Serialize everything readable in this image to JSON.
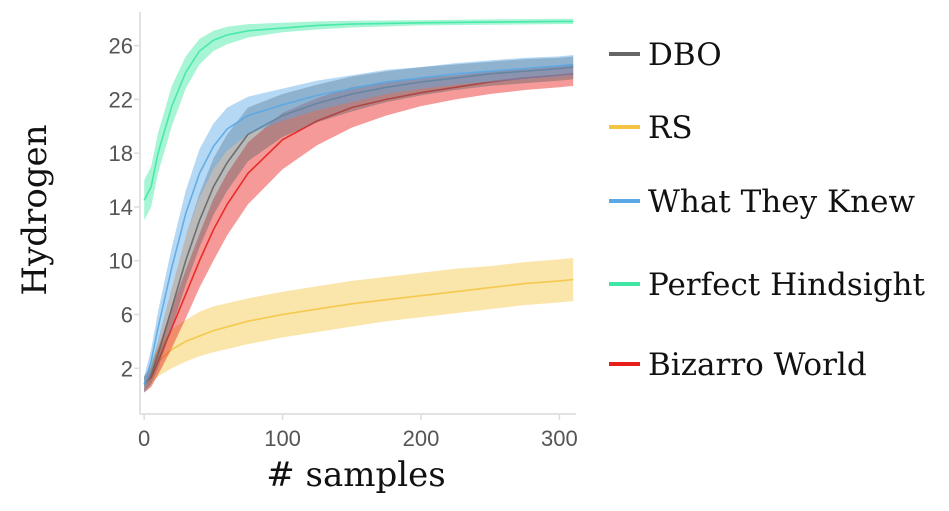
{
  "chart_data": {
    "type": "line",
    "title": "",
    "xlabel": "# samples",
    "ylabel": "Hydrogen",
    "xlim": [
      -3,
      312
    ],
    "ylim": [
      -1.4,
      28.5
    ],
    "xticks": [
      0,
      100,
      200,
      300
    ],
    "yticks": [
      2,
      6,
      10,
      14,
      18,
      22,
      26
    ],
    "grid": false,
    "legend_position": "right",
    "series": [
      {
        "name": "DBO",
        "color": "#666666",
        "x": [
          0,
          5,
          10,
          20,
          30,
          40,
          50,
          60,
          75,
          100,
          125,
          150,
          175,
          200,
          225,
          250,
          275,
          300,
          310
        ],
        "y": [
          0.8,
          1.5,
          3,
          6.5,
          10,
          13,
          15.5,
          17.3,
          19.4,
          20.8,
          21.7,
          22.4,
          22.9,
          23.3,
          23.6,
          23.9,
          24.1,
          24.3,
          24.4
        ],
        "lower": [
          0.2,
          0.8,
          2,
          5,
          8.2,
          11,
          13.4,
          15.2,
          17.4,
          19.2,
          20.3,
          21.1,
          21.8,
          22.3,
          22.7,
          23,
          23.2,
          23.4,
          23.5
        ],
        "upper": [
          1.4,
          2.2,
          4,
          8,
          11.8,
          15,
          17.6,
          19.4,
          21.4,
          22.4,
          23.1,
          23.7,
          24.1,
          24.4,
          24.6,
          24.8,
          25,
          25.1,
          25.2
        ]
      },
      {
        "name": "RS",
        "color": "#f4c542",
        "x": [
          0,
          5,
          10,
          20,
          30,
          40,
          50,
          75,
          100,
          125,
          150,
          175,
          200,
          225,
          250,
          275,
          300,
          310
        ],
        "y": [
          0.8,
          1.7,
          2.5,
          3.4,
          4,
          4.4,
          4.8,
          5.5,
          6,
          6.4,
          6.8,
          7.1,
          7.4,
          7.7,
          8,
          8.3,
          8.5,
          8.6
        ],
        "lower": [
          0.3,
          0.9,
          1.4,
          2,
          2.5,
          2.9,
          3.2,
          3.8,
          4.3,
          4.7,
          5.1,
          5.5,
          5.8,
          6.1,
          6.4,
          6.7,
          6.9,
          7
        ],
        "upper": [
          1.3,
          2.5,
          3.5,
          4.9,
          5.6,
          6.2,
          6.6,
          7.2,
          7.7,
          8.1,
          8.5,
          8.8,
          9.1,
          9.4,
          9.6,
          9.9,
          10.1,
          10.2
        ]
      },
      {
        "name": "What They Knew",
        "color": "#5aa9e6",
        "x": [
          0,
          5,
          10,
          20,
          30,
          40,
          50,
          60,
          75,
          100,
          125,
          150,
          175,
          200,
          225,
          250,
          275,
          300,
          310
        ],
        "y": [
          0.8,
          2.5,
          5,
          9.5,
          13.5,
          16.5,
          18.5,
          19.8,
          20.8,
          21.6,
          22.3,
          22.8,
          23.3,
          23.6,
          23.9,
          24.1,
          24.3,
          24.5,
          24.6
        ],
        "lower": [
          0.2,
          1.6,
          3.8,
          8,
          11.8,
          14.7,
          16.8,
          18.2,
          19.4,
          20.4,
          21.2,
          21.8,
          22.4,
          22.8,
          23.1,
          23.3,
          23.5,
          23.7,
          23.8
        ],
        "upper": [
          1.4,
          3.4,
          6.2,
          11,
          15.2,
          18.3,
          20.2,
          21.4,
          22.2,
          22.8,
          23.4,
          23.8,
          24.2,
          24.4,
          24.7,
          24.9,
          25.1,
          25.2,
          25.3
        ]
      },
      {
        "name": "Perfect Hindsight",
        "color": "#3ee8a4",
        "x": [
          0,
          5,
          10,
          20,
          30,
          40,
          50,
          60,
          75,
          100,
          125,
          150,
          200,
          250,
          300,
          310
        ],
        "y": [
          14.5,
          15.5,
          18,
          21.5,
          24,
          25.6,
          26.4,
          26.8,
          27.1,
          27.3,
          27.5,
          27.6,
          27.7,
          27.75,
          27.8,
          27.8
        ],
        "lower": [
          13,
          14,
          16.5,
          20,
          22.8,
          24.6,
          25.6,
          26.1,
          26.6,
          27,
          27.2,
          27.35,
          27.5,
          27.55,
          27.6,
          27.6
        ],
        "upper": [
          16,
          17,
          19.5,
          23,
          25.2,
          26.5,
          27.1,
          27.4,
          27.6,
          27.7,
          27.8,
          27.85,
          27.9,
          27.95,
          28,
          28
        ]
      },
      {
        "name": "Bizarro World",
        "color": "#e8201c",
        "x": [
          0,
          5,
          10,
          20,
          30,
          40,
          50,
          60,
          75,
          100,
          125,
          150,
          175,
          200,
          225,
          250,
          275,
          300,
          310
        ],
        "y": [
          0.8,
          1.3,
          2.5,
          5,
          7.5,
          10,
          12.3,
          14.2,
          16.5,
          19,
          20.4,
          21.4,
          22,
          22.5,
          22.9,
          23.3,
          23.6,
          23.8,
          23.9
        ],
        "lower": [
          0.2,
          0.6,
          1.5,
          3.5,
          5.7,
          8,
          10,
          11.9,
          14.2,
          16.8,
          18.6,
          19.9,
          20.8,
          21.5,
          22,
          22.4,
          22.7,
          22.9,
          23
        ],
        "upper": [
          1.4,
          2,
          3.5,
          6.5,
          9.3,
          12,
          14.6,
          16.5,
          18.8,
          21,
          22.1,
          22.9,
          23.3,
          23.6,
          23.8,
          24.1,
          24.3,
          24.5,
          24.6
        ]
      }
    ]
  }
}
